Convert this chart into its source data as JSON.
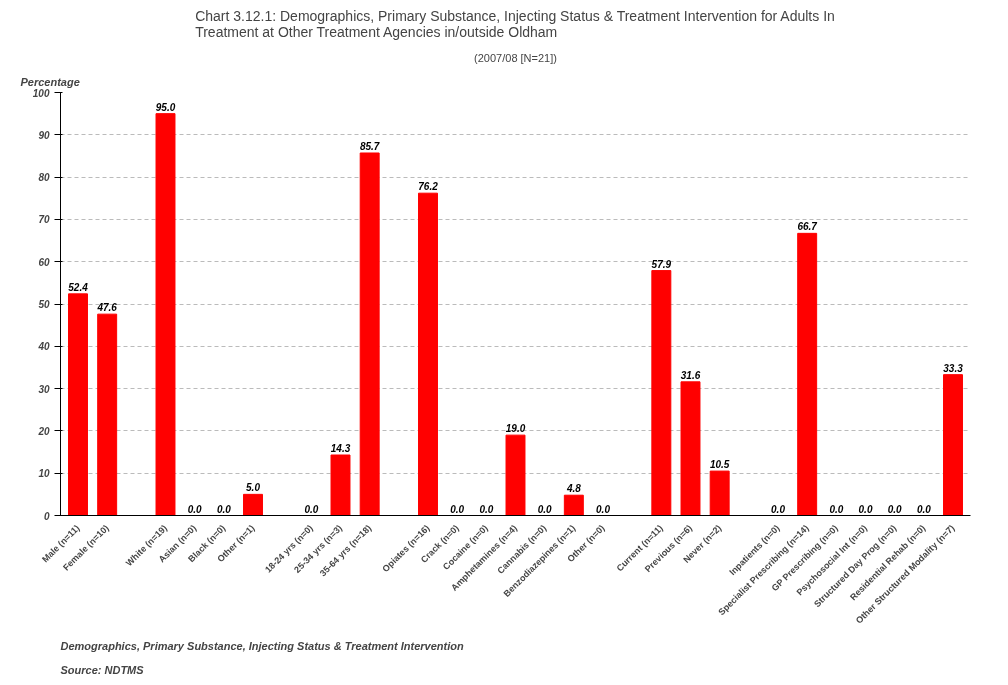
{
  "chart_data": {
    "type": "bar",
    "title": "Chart 3.12.1: Demographics, Primary Substance, Injecting Status & Treatment Intervention for Adults In Treatment at Other Treatment Agencies in/outside Oldham",
    "subtitle": "(2007/08 [N=21])",
    "ylabel": "Percentage",
    "categories": [
      "Male (n=11)",
      "Female (n=10)",
      null,
      "White (n=19)",
      "Asian (n=0)",
      "Black (n=0)",
      "Other (n=1)",
      null,
      "18-24 yrs (n=0)",
      "25-34 yrs (n=3)",
      "35-64 yrs (n=18)",
      null,
      "Opiates (n=16)",
      "Crack (n=0)",
      "Cocaine (n=0)",
      "Amphetamines (n=4)",
      "Cannabis (n=0)",
      "Benzodiazepines (n=1)",
      "Other (n=0)",
      null,
      "Current (n=11)",
      "Previous (n=6)",
      "Never (n=2)",
      null,
      "Inpatients (n=0)",
      "Specialist Prescribing (n=14)",
      "GP Prescribing (n=0)",
      "Psychosocial Int (n=0)",
      "Structured Day Prog (n=0)",
      "Residential Rehab (n=0)",
      "Other Structured Modality (n=7)"
    ],
    "values": [
      52.4,
      47.6,
      null,
      95.0,
      0.0,
      0.0,
      5.0,
      null,
      0.0,
      14.3,
      85.7,
      null,
      76.2,
      0.0,
      0.0,
      19.0,
      0.0,
      4.8,
      0.0,
      null,
      57.9,
      31.6,
      10.5,
      null,
      0.0,
      66.7,
      0.0,
      0.0,
      0.0,
      0.0,
      33.3
    ],
    "value_labels": [
      "52.4",
      "47.6",
      null,
      "95.0",
      "0.0",
      "0.0",
      "5.0",
      null,
      "0.0",
      "14.3",
      "85.7",
      null,
      "76.2",
      "0.0",
      "0.0",
      "19.0",
      "0.0",
      "4.8",
      "0.0",
      null,
      "57.9",
      "31.6",
      "10.5",
      null,
      "0.0",
      "66.7",
      "0.0",
      "0.0",
      "0.0",
      "0.0",
      "33.3"
    ],
    "color": "#ff0000",
    "ylim": [
      0,
      100
    ],
    "yticks": [
      0,
      10,
      20,
      30,
      40,
      50,
      60,
      70,
      80,
      90,
      100
    ],
    "grid": "y",
    "annotations": [
      "Source: NDTMS",
      "Demographics, Primary Substance, Injecting Status & Treatment Intervention"
    ]
  }
}
